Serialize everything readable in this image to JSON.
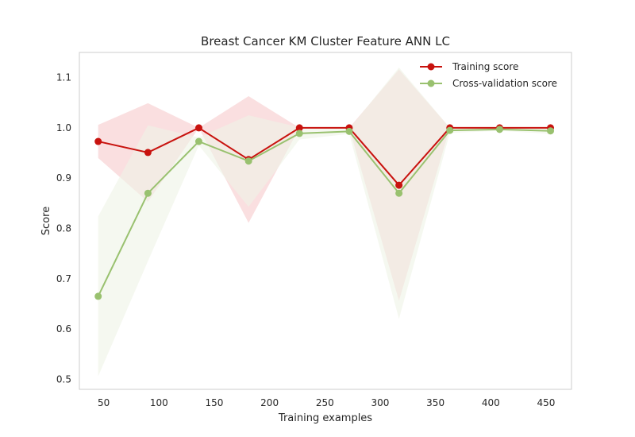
{
  "chart_data": {
    "type": "line",
    "title": "Breast Cancer KM Cluster Feature ANN LC",
    "xlabel": "Training examples",
    "ylabel": "Score",
    "xlim": [
      28,
      473
    ],
    "ylim": [
      0.48,
      1.15
    ],
    "xticks": [
      50,
      100,
      150,
      200,
      250,
      300,
      350,
      400,
      450
    ],
    "yticks": [
      0.5,
      0.6,
      0.7,
      0.8,
      0.9,
      1.0,
      1.1
    ],
    "ytick_labels": [
      "0.5",
      "0.6",
      "0.7",
      "0.8",
      "0.9",
      "1.0",
      "1.1"
    ],
    "grid": false,
    "legend_position": "upper-right",
    "x": [
      45,
      90,
      136,
      181,
      227,
      272,
      317,
      363,
      408,
      454
    ],
    "series": [
      {
        "name": "Training score",
        "color": "#c8120e",
        "band_color": "#f9d9da",
        "values": [
          0.973,
          0.951,
          1.0,
          0.937,
          1.0,
          1.0,
          0.886,
          1.0,
          1.0,
          1.0
        ],
        "band_upper": [
          1.006,
          1.049,
          1.0,
          1.063,
          1.0,
          1.0,
          1.116,
          1.0,
          1.0,
          1.0
        ],
        "band_lower": [
          0.94,
          0.853,
          1.0,
          0.811,
          1.0,
          1.0,
          0.656,
          1.0,
          1.0,
          1.0
        ]
      },
      {
        "name": "Cross-validation score",
        "color": "#99c16f",
        "band_color": "#eef4e6",
        "values": [
          0.665,
          0.87,
          0.973,
          0.934,
          0.989,
          0.993,
          0.87,
          0.995,
          0.997,
          0.994
        ],
        "band_upper": [
          0.824,
          1.005,
          0.981,
          1.025,
          1.001,
          0.998,
          1.12,
          1.0,
          1.0,
          1.0
        ],
        "band_lower": [
          0.506,
          0.735,
          0.965,
          0.843,
          0.977,
          0.988,
          0.62,
          0.99,
          0.994,
          0.988
        ]
      }
    ]
  }
}
